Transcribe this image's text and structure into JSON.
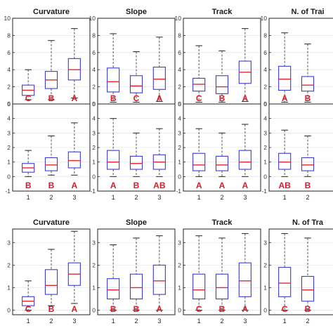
{
  "figure": {
    "colors": {
      "box": "#3b3bd6",
      "median": "#e0282e",
      "whisker": "#555555",
      "letter": "#d81b2c",
      "axis": "#222222",
      "grid": "#e6e6e6"
    }
  },
  "chart_data": [
    {
      "id": "top-upper",
      "type": "box",
      "panels": [
        {
          "title": "Curvature",
          "ylim": [
            0,
            10
          ],
          "yticks": [
            0,
            2,
            4,
            6,
            8,
            10
          ],
          "x": [
            "1",
            "2",
            "3"
          ],
          "xticks_shown": false,
          "boxes": [
            {
              "min": 0.5,
              "q1": 1.0,
              "median": 1.6,
              "q3": 2.2,
              "max": 4.0
            },
            {
              "min": 0.5,
              "q1": 1.8,
              "median": 2.8,
              "q3": 3.8,
              "max": 7.4
            },
            {
              "min": 0.7,
              "q1": 2.8,
              "median": 4.0,
              "q3": 5.3,
              "max": 8.8
            }
          ],
          "groups": [
            "C",
            "B",
            "A"
          ]
        },
        {
          "title": "Slope",
          "ylim": [
            0,
            10
          ],
          "yticks": [
            0,
            2,
            4,
            6,
            8,
            10
          ],
          "x": [
            "1",
            "2",
            "3"
          ],
          "xticks_shown": false,
          "boxes": [
            {
              "min": 0.2,
              "q1": 1.4,
              "median": 2.6,
              "q3": 4.2,
              "max": 8.2
            },
            {
              "min": 0.2,
              "q1": 1.3,
              "median": 2.1,
              "q3": 3.3,
              "max": 6.1
            },
            {
              "min": 0.3,
              "q1": 1.7,
              "median": 2.9,
              "q3": 4.3,
              "max": 7.8
            }
          ],
          "groups": [
            "B",
            "C",
            "A"
          ]
        },
        {
          "title": "Track",
          "ylim": [
            0,
            10
          ],
          "yticks": [
            0,
            2,
            4,
            6,
            8,
            10
          ],
          "x": [
            "1",
            "2",
            "3"
          ],
          "xticks_shown": false,
          "boxes": [
            {
              "min": 0.2,
              "q1": 1.5,
              "median": 2.3,
              "q3": 3.0,
              "max": 6.8
            },
            {
              "min": 0.2,
              "q1": 1.2,
              "median": 2.0,
              "q3": 3.3,
              "max": 6.2
            },
            {
              "min": 0.3,
              "q1": 2.4,
              "median": 3.7,
              "q3": 5.0,
              "max": 8.8
            }
          ],
          "groups": [
            "C",
            "B",
            "A"
          ]
        },
        {
          "title": "N. of Trai",
          "ylim": [
            0,
            10
          ],
          "yticks": [
            0,
            2,
            4,
            6,
            8,
            10
          ],
          "x": [
            "1",
            "2",
            "3"
          ],
          "xticks_shown": false,
          "boxes": [
            {
              "min": 0.2,
              "q1": 1.6,
              "median": 2.9,
              "q3": 4.4,
              "max": 8.3
            },
            {
              "min": 0.2,
              "q1": 1.5,
              "median": 2.2,
              "q3": 3.2,
              "max": 7.0
            }
          ],
          "groups": [
            "A",
            "B"
          ]
        }
      ]
    },
    {
      "id": "top-lower",
      "type": "box",
      "panels": [
        {
          "title": "",
          "ylim": [
            -1,
            5
          ],
          "yticks": [
            -1,
            0,
            1,
            2,
            3,
            4,
            5
          ],
          "x": [
            "1",
            "2",
            "3"
          ],
          "xticks_shown": true,
          "boxes": [
            {
              "min": 0.0,
              "q1": 0.3,
              "median": 0.6,
              "q3": 0.9,
              "max": 1.8
            },
            {
              "min": 0.1,
              "q1": 0.4,
              "median": 0.8,
              "q3": 1.3,
              "max": 2.8
            },
            {
              "min": 0.1,
              "q1": 0.6,
              "median": 1.1,
              "q3": 1.7,
              "max": 3.7
            }
          ],
          "groups": [
            "B",
            "B",
            "A"
          ]
        },
        {
          "title": "",
          "ylim": [
            -1,
            5
          ],
          "yticks": [
            -1,
            0,
            1,
            2,
            3,
            4,
            5
          ],
          "x": [
            "1",
            "2",
            "3"
          ],
          "xticks_shown": true,
          "boxes": [
            {
              "min": 0.0,
              "q1": 0.5,
              "median": 1.0,
              "q3": 1.8,
              "max": 4.0
            },
            {
              "min": 0.0,
              "q1": 0.5,
              "median": 0.9,
              "q3": 1.4,
              "max": 3.0
            },
            {
              "min": 0.0,
              "q1": 0.5,
              "median": 1.0,
              "q3": 1.5,
              "max": 3.3
            }
          ],
          "groups": [
            "A",
            "B",
            "AB"
          ]
        },
        {
          "title": "",
          "ylim": [
            -1,
            5
          ],
          "yticks": [
            -1,
            0,
            1,
            2,
            3,
            4,
            5
          ],
          "x": [
            "1",
            "2",
            "3"
          ],
          "xticks_shown": true,
          "boxes": [
            {
              "min": 0.0,
              "q1": 0.4,
              "median": 0.8,
              "q3": 1.6,
              "max": 3.3
            },
            {
              "min": 0.0,
              "q1": 0.4,
              "median": 0.8,
              "q3": 1.4,
              "max": 3.0
            },
            {
              "min": 0.0,
              "q1": 0.5,
              "median": 1.0,
              "q3": 1.8,
              "max": 3.6
            }
          ],
          "groups": [
            "A",
            "A",
            "A"
          ]
        },
        {
          "title": "",
          "ylim": [
            -1,
            5
          ],
          "yticks": [
            -1,
            0,
            1,
            2,
            3,
            4,
            5
          ],
          "x": [
            "1",
            "2",
            "3"
          ],
          "xticks_shown": true,
          "boxes": [
            {
              "min": 0.0,
              "q1": 0.5,
              "median": 1.0,
              "q3": 1.6,
              "max": 3.2
            },
            {
              "min": 0.0,
              "q1": 0.4,
              "median": 0.8,
              "q3": 1.3,
              "max": 2.8
            }
          ],
          "groups": [
            "AB",
            "B"
          ]
        }
      ]
    },
    {
      "id": "bottom",
      "type": "box",
      "panels": [
        {
          "title": "Curvature",
          "ylim": [
            -0.2,
            3.6
          ],
          "yticks": [
            0,
            1,
            2,
            3
          ],
          "x": [
            "1",
            "2",
            "3"
          ],
          "xticks_shown": true,
          "boxes": [
            {
              "min": 0.0,
              "q1": 0.2,
              "median": 0.4,
              "q3": 0.6,
              "max": 1.3
            },
            {
              "min": 0.2,
              "q1": 0.7,
              "median": 1.1,
              "q3": 1.8,
              "max": 2.7
            },
            {
              "min": 0.3,
              "q1": 1.1,
              "median": 1.6,
              "q3": 2.1,
              "max": 3.5
            }
          ],
          "groups": [
            "C",
            "B",
            "A"
          ]
        },
        {
          "title": "Slope",
          "ylim": [
            -0.2,
            3.6
          ],
          "yticks": [
            0,
            1,
            2,
            3
          ],
          "x": [
            "1",
            "2",
            "3"
          ],
          "xticks_shown": true,
          "boxes": [
            {
              "min": 0.0,
              "q1": 0.5,
              "median": 0.9,
              "q3": 1.4,
              "max": 2.9
            },
            {
              "min": 0.0,
              "q1": 0.5,
              "median": 1.0,
              "q3": 1.6,
              "max": 3.2
            },
            {
              "min": 0.0,
              "q1": 0.7,
              "median": 1.3,
              "q3": 2.0,
              "max": 3.3
            }
          ],
          "groups": [
            "B",
            "B",
            "A"
          ]
        },
        {
          "title": "Track",
          "ylim": [
            -0.2,
            3.6
          ],
          "yticks": [
            0,
            1,
            2,
            3
          ],
          "x": [
            "1",
            "2",
            "3"
          ],
          "xticks_shown": true,
          "boxes": [
            {
              "min": 0.0,
              "q1": 0.5,
              "median": 0.9,
              "q3": 1.6,
              "max": 3.3
            },
            {
              "min": 0.0,
              "q1": 0.5,
              "median": 1.0,
              "q3": 1.6,
              "max": 3.2
            },
            {
              "min": 0.0,
              "q1": 0.6,
              "median": 1.3,
              "q3": 2.1,
              "max": 3.4
            }
          ],
          "groups": [
            "C",
            "B",
            "A"
          ]
        },
        {
          "title": "N. of Tra",
          "ylim": [
            -0.2,
            3.6
          ],
          "yticks": [
            0,
            1,
            2,
            3
          ],
          "x": [
            "1",
            "2",
            "3"
          ],
          "xticks_shown": true,
          "boxes": [
            {
              "min": 0.0,
              "q1": 0.6,
              "median": 1.2,
              "q3": 1.9,
              "max": 3.4
            },
            {
              "min": 0.0,
              "q1": 0.4,
              "median": 0.9,
              "q3": 1.5,
              "max": 3.2
            }
          ],
          "groups": [
            "C",
            "B"
          ]
        }
      ]
    }
  ]
}
